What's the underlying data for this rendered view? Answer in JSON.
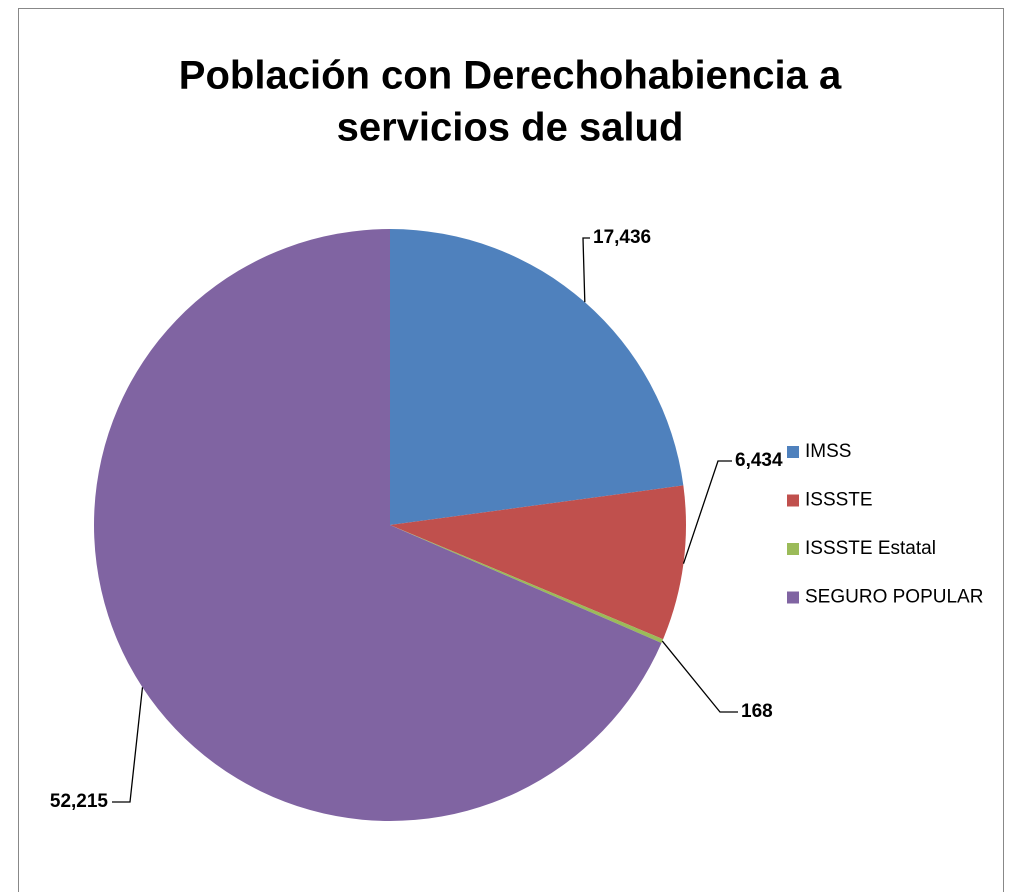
{
  "chart_data": {
    "type": "pie",
    "title": [
      "Población con Derechohabiencia a",
      "servicios de salud"
    ],
    "categories": [
      "IMSS",
      "ISSSTE",
      "ISSSTE Estatal",
      "SEGURO POPULAR"
    ],
    "values": [
      17436,
      6434,
      168,
      52215
    ],
    "value_labels": [
      "17,436",
      "6,434",
      "168",
      "52,215"
    ],
    "colors": [
      "#4f81bd",
      "#c0504d",
      "#9bbb59",
      "#8064a2"
    ],
    "legend": "right"
  }
}
